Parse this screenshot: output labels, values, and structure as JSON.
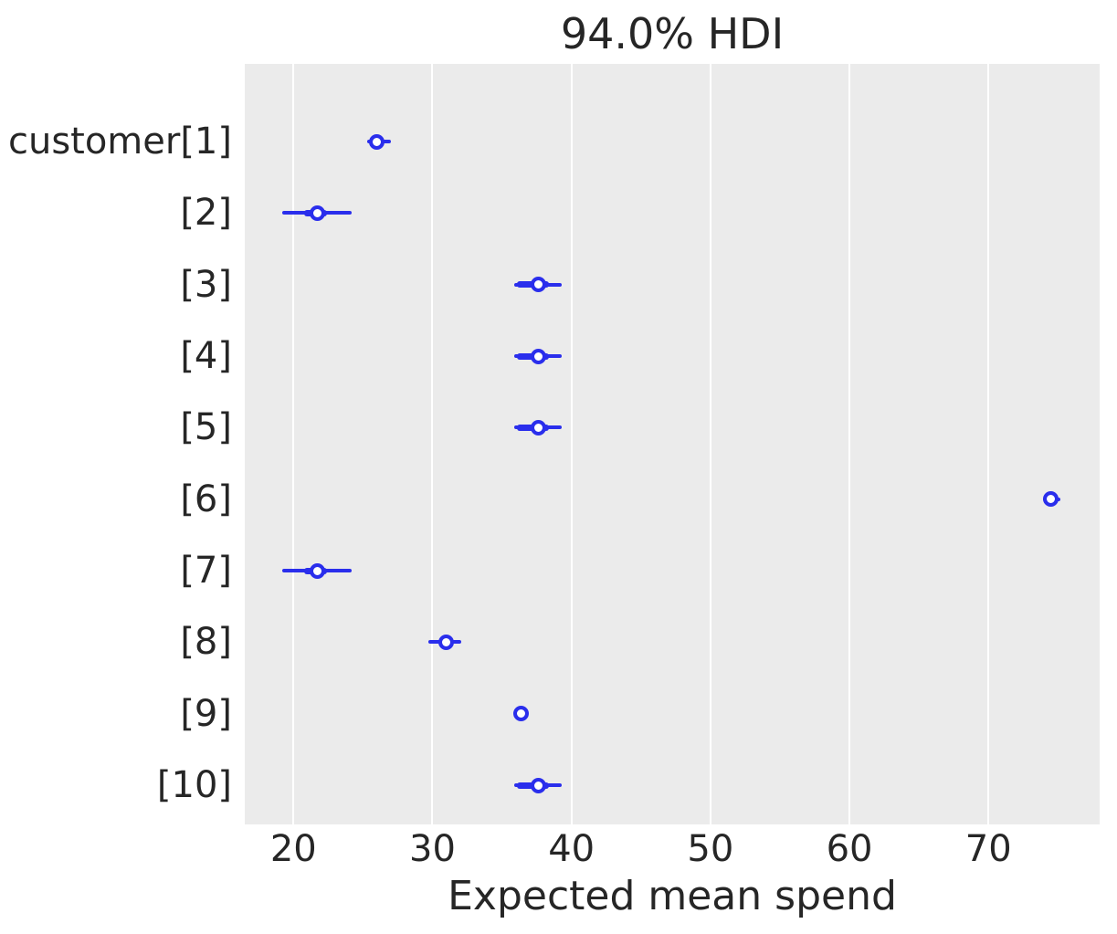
{
  "colors": {
    "accent_blue": "#2a2eec",
    "plot_background": "#ebebeb",
    "gridline": "#ffffff",
    "text": "#262626",
    "figure_background": "#ffffff",
    "marker_face": "#ffffff"
  },
  "chart_data": {
    "type": "forest-plot",
    "title": "94.0% HDI",
    "xlabel": "Expected mean spend",
    "ylabel": "",
    "xlim": [
      16.5,
      78.0
    ],
    "xticks": [
      20,
      30,
      40,
      50,
      60,
      70
    ],
    "grid": "vertical-white-on-gray",
    "legend": "none",
    "rows": [
      {
        "label": "customer[1]",
        "point": 26.0,
        "hdi": [
          25.3,
          27.0
        ],
        "quartile": [
          25.7,
          26.5
        ]
      },
      {
        "label": "[2]",
        "point": 21.7,
        "hdi": [
          19.2,
          24.2
        ],
        "quartile": [
          20.8,
          22.4
        ]
      },
      {
        "label": "[3]",
        "point": 37.6,
        "hdi": [
          35.9,
          39.3
        ],
        "quartile": [
          36.1,
          38.4
        ]
      },
      {
        "label": "[4]",
        "point": 37.6,
        "hdi": [
          35.9,
          39.3
        ],
        "quartile": [
          36.1,
          38.4
        ]
      },
      {
        "label": "[5]",
        "point": 37.6,
        "hdi": [
          35.9,
          39.3
        ],
        "quartile": [
          36.1,
          38.4
        ]
      },
      {
        "label": "[6]",
        "point": 74.5,
        "hdi": [
          73.9,
          75.2
        ],
        "quartile": [
          74.2,
          74.9
        ]
      },
      {
        "label": "[7]",
        "point": 21.7,
        "hdi": [
          19.2,
          24.2
        ],
        "quartile": [
          20.8,
          22.4
        ]
      },
      {
        "label": "[8]",
        "point": 31.0,
        "hdi": [
          29.7,
          32.1
        ],
        "quartile": [
          30.4,
          31.5
        ]
      },
      {
        "label": "[9]",
        "point": 36.4,
        "hdi": [
          36.0,
          36.7
        ],
        "quartile": [
          36.2,
          36.6
        ]
      },
      {
        "label": "[10]",
        "point": 37.6,
        "hdi": [
          35.9,
          39.3
        ],
        "quartile": [
          36.1,
          38.4
        ]
      }
    ]
  }
}
